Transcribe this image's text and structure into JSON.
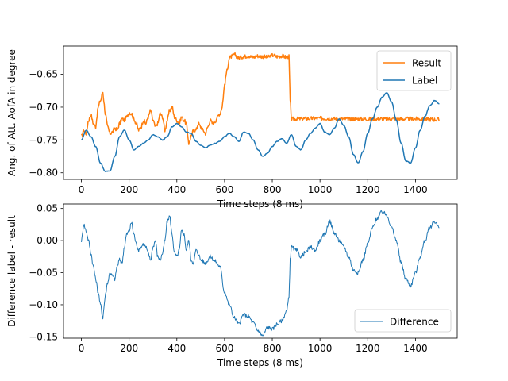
{
  "colors": {
    "result": "#ff7f0e",
    "label": "#1f77b4",
    "difference": "#1f77b4"
  },
  "chart_data": [
    {
      "type": "line",
      "title": "",
      "xlabel": "Time steps (8 ms)",
      "ylabel": "Ang. of Att. AofA in degree",
      "xlim": [
        -75,
        1575
      ],
      "ylim": [
        -0.81,
        -0.607
      ],
      "xticks": [
        0,
        200,
        400,
        600,
        800,
        1000,
        1200,
        1400
      ],
      "xtick_labels": [
        "0",
        "200",
        "400",
        "600",
        "800",
        "1000",
        "1200",
        "1400"
      ],
      "yticks": [
        -0.8,
        -0.75,
        -0.7,
        -0.65
      ],
      "ytick_labels": [
        "−0.80",
        "−0.75",
        "−0.70",
        "−0.65"
      ],
      "legend_position": "upper-right",
      "series": [
        {
          "name": "Result",
          "color": "#ff7f0e",
          "x": [
            0,
            10,
            20,
            30,
            40,
            50,
            60,
            70,
            80,
            90,
            100,
            110,
            120,
            130,
            140,
            150,
            160,
            170,
            180,
            190,
            200,
            210,
            220,
            230,
            240,
            250,
            260,
            270,
            280,
            290,
            300,
            310,
            320,
            330,
            340,
            350,
            360,
            370,
            380,
            390,
            400,
            410,
            420,
            430,
            440,
            450,
            460,
            470,
            480,
            490,
            500,
            510,
            520,
            530,
            540,
            550,
            560,
            570,
            580,
            590,
            600,
            610,
            620,
            630,
            640,
            660,
            680,
            700,
            720,
            740,
            760,
            780,
            800,
            820,
            840,
            860,
            870,
            875,
            880,
            900,
            1000,
            1100,
            1200,
            1300,
            1400,
            1500
          ],
          "y": [
            -0.745,
            -0.735,
            -0.74,
            -0.72,
            -0.712,
            -0.725,
            -0.73,
            -0.7,
            -0.69,
            -0.677,
            -0.71,
            -0.73,
            -0.74,
            -0.738,
            -0.732,
            -0.735,
            -0.725,
            -0.718,
            -0.72,
            -0.715,
            -0.708,
            -0.71,
            -0.718,
            -0.725,
            -0.735,
            -0.73,
            -0.72,
            -0.725,
            -0.715,
            -0.705,
            -0.72,
            -0.73,
            -0.725,
            -0.71,
            -0.715,
            -0.735,
            -0.72,
            -0.705,
            -0.7,
            -0.715,
            -0.72,
            -0.725,
            -0.715,
            -0.72,
            -0.725,
            -0.755,
            -0.745,
            -0.735,
            -0.735,
            -0.725,
            -0.73,
            -0.735,
            -0.74,
            -0.73,
            -0.72,
            -0.725,
            -0.722,
            -0.715,
            -0.71,
            -0.7,
            -0.665,
            -0.645,
            -0.625,
            -0.623,
            -0.62,
            -0.625,
            -0.623,
            -0.622,
            -0.624,
            -0.622,
            -0.623,
            -0.624,
            -0.621,
            -0.623,
            -0.622,
            -0.624,
            -0.623,
            -0.69,
            -0.718,
            -0.718,
            -0.717,
            -0.718,
            -0.718,
            -0.718,
            -0.718,
            -0.719
          ]
        },
        {
          "name": "Label",
          "color": "#1f77b4",
          "x": [
            0,
            20,
            40,
            60,
            80,
            100,
            120,
            140,
            160,
            180,
            200,
            220,
            240,
            260,
            280,
            300,
            320,
            340,
            360,
            380,
            400,
            420,
            440,
            460,
            480,
            500,
            520,
            540,
            560,
            580,
            600,
            620,
            640,
            660,
            680,
            700,
            720,
            740,
            760,
            780,
            800,
            820,
            840,
            860,
            880,
            900,
            920,
            940,
            960,
            980,
            1000,
            1020,
            1040,
            1060,
            1080,
            1100,
            1120,
            1140,
            1160,
            1180,
            1200,
            1220,
            1240,
            1260,
            1280,
            1300,
            1320,
            1340,
            1360,
            1380,
            1400,
            1420,
            1440,
            1460,
            1480,
            1500
          ],
          "y": [
            -0.75,
            -0.735,
            -0.745,
            -0.76,
            -0.785,
            -0.798,
            -0.797,
            -0.775,
            -0.745,
            -0.735,
            -0.75,
            -0.765,
            -0.76,
            -0.755,
            -0.75,
            -0.742,
            -0.745,
            -0.75,
            -0.745,
            -0.73,
            -0.725,
            -0.73,
            -0.738,
            -0.74,
            -0.752,
            -0.758,
            -0.762,
            -0.758,
            -0.755,
            -0.752,
            -0.745,
            -0.74,
            -0.745,
            -0.752,
            -0.738,
            -0.74,
            -0.75,
            -0.765,
            -0.775,
            -0.77,
            -0.76,
            -0.752,
            -0.748,
            -0.755,
            -0.742,
            -0.76,
            -0.765,
            -0.75,
            -0.74,
            -0.732,
            -0.725,
            -0.738,
            -0.742,
            -0.732,
            -0.718,
            -0.728,
            -0.745,
            -0.772,
            -0.785,
            -0.768,
            -0.74,
            -0.718,
            -0.7,
            -0.685,
            -0.678,
            -0.692,
            -0.72,
            -0.755,
            -0.782,
            -0.785,
            -0.762,
            -0.735,
            -0.714,
            -0.698,
            -0.69,
            -0.695
          ]
        }
      ]
    },
    {
      "type": "line",
      "title": "",
      "xlabel": "Time steps (8 ms)",
      "ylabel": "Difference label - result",
      "xlim": [
        -75,
        1575
      ],
      "ylim": [
        -0.152,
        0.057
      ],
      "xticks": [
        0,
        200,
        400,
        600,
        800,
        1000,
        1200,
        1400
      ],
      "xtick_labels": [
        "0",
        "200",
        "400",
        "600",
        "800",
        "1000",
        "1200",
        "1400"
      ],
      "yticks": [
        -0.15,
        -0.1,
        -0.05,
        0.0,
        0.05
      ],
      "ytick_labels": [
        "−0.15",
        "−0.10",
        "−0.05",
        "0.00",
        "0.05"
      ],
      "legend_position": "lower-right",
      "series": [
        {
          "name": "Difference",
          "color": "#1f77b4",
          "x": [
            0,
            10,
            20,
            30,
            40,
            50,
            60,
            70,
            80,
            90,
            100,
            110,
            120,
            130,
            140,
            150,
            160,
            170,
            180,
            190,
            200,
            210,
            220,
            230,
            240,
            250,
            260,
            270,
            280,
            290,
            300,
            310,
            320,
            330,
            340,
            350,
            360,
            370,
            380,
            390,
            400,
            410,
            420,
            430,
            440,
            450,
            460,
            470,
            480,
            490,
            500,
            520,
            540,
            560,
            580,
            600,
            620,
            640,
            660,
            680,
            700,
            720,
            740,
            760,
            780,
            800,
            820,
            840,
            860,
            870,
            875,
            880,
            900,
            920,
            940,
            960,
            980,
            1000,
            1020,
            1040,
            1060,
            1080,
            1100,
            1120,
            1140,
            1160,
            1180,
            1200,
            1220,
            1240,
            1260,
            1280,
            1300,
            1320,
            1340,
            1360,
            1380,
            1400,
            1420,
            1440,
            1460,
            1480,
            1500
          ],
          "y": [
            0.0,
            0.025,
            0.015,
            0.0,
            -0.02,
            -0.04,
            -0.06,
            -0.08,
            -0.1,
            -0.12,
            -0.085,
            -0.065,
            -0.05,
            -0.055,
            -0.06,
            -0.04,
            -0.03,
            -0.035,
            -0.01,
            0.01,
            0.015,
            0.028,
            0.01,
            -0.005,
            -0.015,
            -0.01,
            -0.005,
            -0.01,
            -0.02,
            -0.03,
            -0.01,
            0.0,
            -0.025,
            -0.03,
            -0.02,
            0.0,
            0.03,
            0.038,
            0.01,
            -0.02,
            -0.025,
            -0.015,
            0.015,
            0.01,
            -0.015,
            0.0,
            -0.03,
            -0.035,
            -0.015,
            -0.02,
            -0.03,
            -0.035,
            -0.025,
            -0.032,
            -0.04,
            -0.08,
            -0.1,
            -0.12,
            -0.13,
            -0.115,
            -0.118,
            -0.128,
            -0.14,
            -0.148,
            -0.135,
            -0.138,
            -0.13,
            -0.125,
            -0.11,
            -0.09,
            -0.03,
            -0.01,
            -0.015,
            -0.025,
            -0.018,
            -0.01,
            -0.015,
            0.0,
            0.01,
            0.03,
            0.012,
            0.0,
            -0.01,
            -0.025,
            -0.046,
            -0.05,
            -0.03,
            -0.005,
            0.02,
            0.035,
            0.045,
            0.04,
            0.02,
            0.0,
            -0.035,
            -0.06,
            -0.07,
            -0.05,
            -0.025,
            0.0,
            0.02,
            0.03,
            0.02
          ]
        }
      ]
    }
  ]
}
